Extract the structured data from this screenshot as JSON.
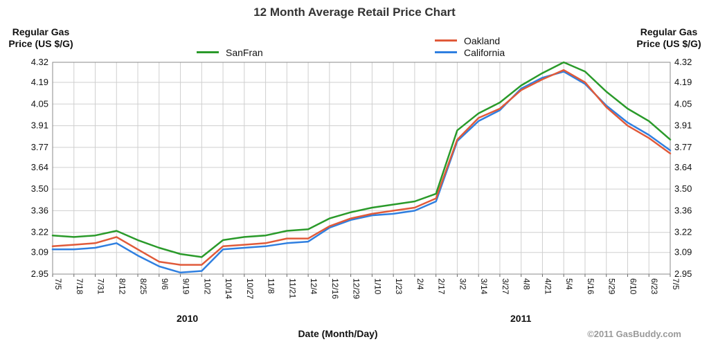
{
  "chart_data": {
    "type": "line",
    "title": "12 Month Average Retail Price Chart",
    "ylabel_left": "Regular Gas\nPrice (US $/G)",
    "ylabel_right": "Regular Gas\nPrice (US $/G)",
    "xlabel": "Date (Month/Day)",
    "years": [
      {
        "label": "2010",
        "at": "10/2"
      },
      {
        "label": "2011",
        "at": "4/21"
      }
    ],
    "credit": "©2011 GasBuddy.com",
    "ylim": [
      2.95,
      4.32
    ],
    "yticks": [
      "2.95",
      "3.09",
      "3.22",
      "3.36",
      "3.50",
      "3.64",
      "3.77",
      "3.91",
      "4.05",
      "4.19",
      "4.32"
    ],
    "categories": [
      "7/5",
      "7/18",
      "7/31",
      "8/12",
      "8/25",
      "9/6",
      "9/19",
      "10/2",
      "10/14",
      "10/27",
      "11/8",
      "11/21",
      "12/4",
      "12/16",
      "12/29",
      "1/10",
      "1/23",
      "2/4",
      "2/17",
      "3/2",
      "3/14",
      "3/27",
      "4/8",
      "4/21",
      "5/4",
      "5/16",
      "5/29",
      "6/10",
      "6/23",
      "7/5"
    ],
    "grid": true,
    "legend": "top",
    "series": [
      {
        "name": "SanFran",
        "color": "#2a9a2a",
        "values": [
          3.2,
          3.19,
          3.2,
          3.23,
          3.17,
          3.12,
          3.08,
          3.06,
          3.17,
          3.19,
          3.2,
          3.23,
          3.24,
          3.31,
          3.35,
          3.38,
          3.4,
          3.42,
          3.47,
          3.88,
          3.99,
          4.06,
          4.17,
          4.25,
          4.32,
          4.26,
          4.13,
          4.02,
          3.94,
          3.82
        ]
      },
      {
        "name": "Oakland",
        "color": "#e05a3a",
        "values": [
          3.13,
          3.14,
          3.15,
          3.19,
          3.11,
          3.03,
          3.01,
          3.01,
          3.13,
          3.14,
          3.15,
          3.18,
          3.18,
          3.26,
          3.31,
          3.34,
          3.36,
          3.38,
          3.44,
          3.82,
          3.96,
          4.02,
          4.14,
          4.21,
          4.27,
          4.19,
          4.03,
          3.91,
          3.83,
          3.73
        ]
      },
      {
        "name": "California",
        "color": "#2f7fe0",
        "values": [
          3.11,
          3.11,
          3.12,
          3.15,
          3.07,
          3.0,
          2.96,
          2.97,
          3.11,
          3.12,
          3.13,
          3.15,
          3.16,
          3.25,
          3.3,
          3.33,
          3.34,
          3.36,
          3.42,
          3.81,
          3.94,
          4.01,
          4.15,
          4.22,
          4.26,
          4.18,
          4.04,
          3.93,
          3.85,
          3.75
        ]
      }
    ]
  }
}
